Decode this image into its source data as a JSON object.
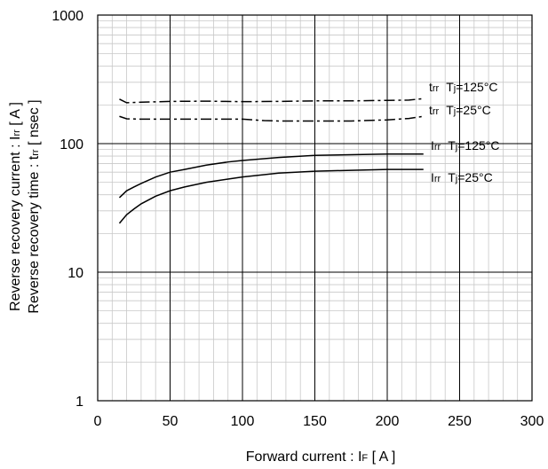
{
  "chart_data": {
    "type": "line",
    "xlabel": {
      "text": "Forward current : I",
      "sub": "F",
      "tail": " [ A ]"
    },
    "ylabel": {
      "line1": {
        "text": "Reverse recovery current : I",
        "sub": "rr",
        "tail": " [ A ]"
      },
      "line2": {
        "text": "Reverse recovery time : t",
        "sub": "rr",
        "tail": " [ nsec ]"
      }
    },
    "xlim": [
      0,
      300
    ],
    "ylim": [
      1,
      1000
    ],
    "yscale": "log",
    "xticks": [
      "0",
      "50",
      "100",
      "150",
      "200",
      "250",
      "300"
    ],
    "yticks": [
      "1",
      "10",
      "100",
      "1000"
    ],
    "grid": true,
    "series": [
      {
        "style": "dashdot",
        "label": {
          "main": "t",
          "sub": "rr",
          "cond": "T",
          "csub": "j",
          "ctail": "=125°C"
        },
        "points": [
          [
            15,
            222
          ],
          [
            20,
            208
          ],
          [
            30,
            210
          ],
          [
            50,
            213
          ],
          [
            75,
            214
          ],
          [
            100,
            212
          ],
          [
            125,
            213
          ],
          [
            150,
            215
          ],
          [
            175,
            215
          ],
          [
            200,
            217
          ],
          [
            215,
            218
          ],
          [
            225,
            224
          ]
        ]
      },
      {
        "style": "dashdot",
        "label": {
          "main": "t",
          "sub": "rr",
          "cond": "T",
          "csub": "j",
          "ctail": "=25°C"
        },
        "points": [
          [
            15,
            163
          ],
          [
            20,
            156
          ],
          [
            30,
            155
          ],
          [
            50,
            155
          ],
          [
            75,
            155
          ],
          [
            100,
            155
          ],
          [
            115,
            151
          ],
          [
            125,
            150
          ],
          [
            150,
            150
          ],
          [
            175,
            150
          ],
          [
            200,
            153
          ],
          [
            215,
            157
          ],
          [
            225,
            163
          ]
        ]
      },
      {
        "style": "solid",
        "label": {
          "main": "I",
          "sub": "rr",
          "cond": "T",
          "csub": "j",
          "ctail": "=125°C"
        },
        "points": [
          [
            15,
            38
          ],
          [
            20,
            43
          ],
          [
            25,
            46
          ],
          [
            30,
            49
          ],
          [
            40,
            55
          ],
          [
            50,
            60
          ],
          [
            60,
            63
          ],
          [
            75,
            68
          ],
          [
            90,
            72
          ],
          [
            100,
            74
          ],
          [
            125,
            78
          ],
          [
            150,
            81
          ],
          [
            175,
            82
          ],
          [
            200,
            83
          ],
          [
            225,
            83
          ]
        ]
      },
      {
        "style": "solid",
        "label": {
          "main": "I",
          "sub": "rr",
          "cond": "T",
          "csub": "j",
          "ctail": "=25°C"
        },
        "points": [
          [
            15,
            24
          ],
          [
            20,
            28
          ],
          [
            25,
            31
          ],
          [
            30,
            34
          ],
          [
            40,
            39
          ],
          [
            50,
            43
          ],
          [
            60,
            46
          ],
          [
            75,
            50
          ],
          [
            90,
            53
          ],
          [
            100,
            55
          ],
          [
            125,
            59
          ],
          [
            150,
            61
          ],
          [
            175,
            62
          ],
          [
            200,
            63
          ],
          [
            225,
            63
          ]
        ]
      }
    ]
  }
}
